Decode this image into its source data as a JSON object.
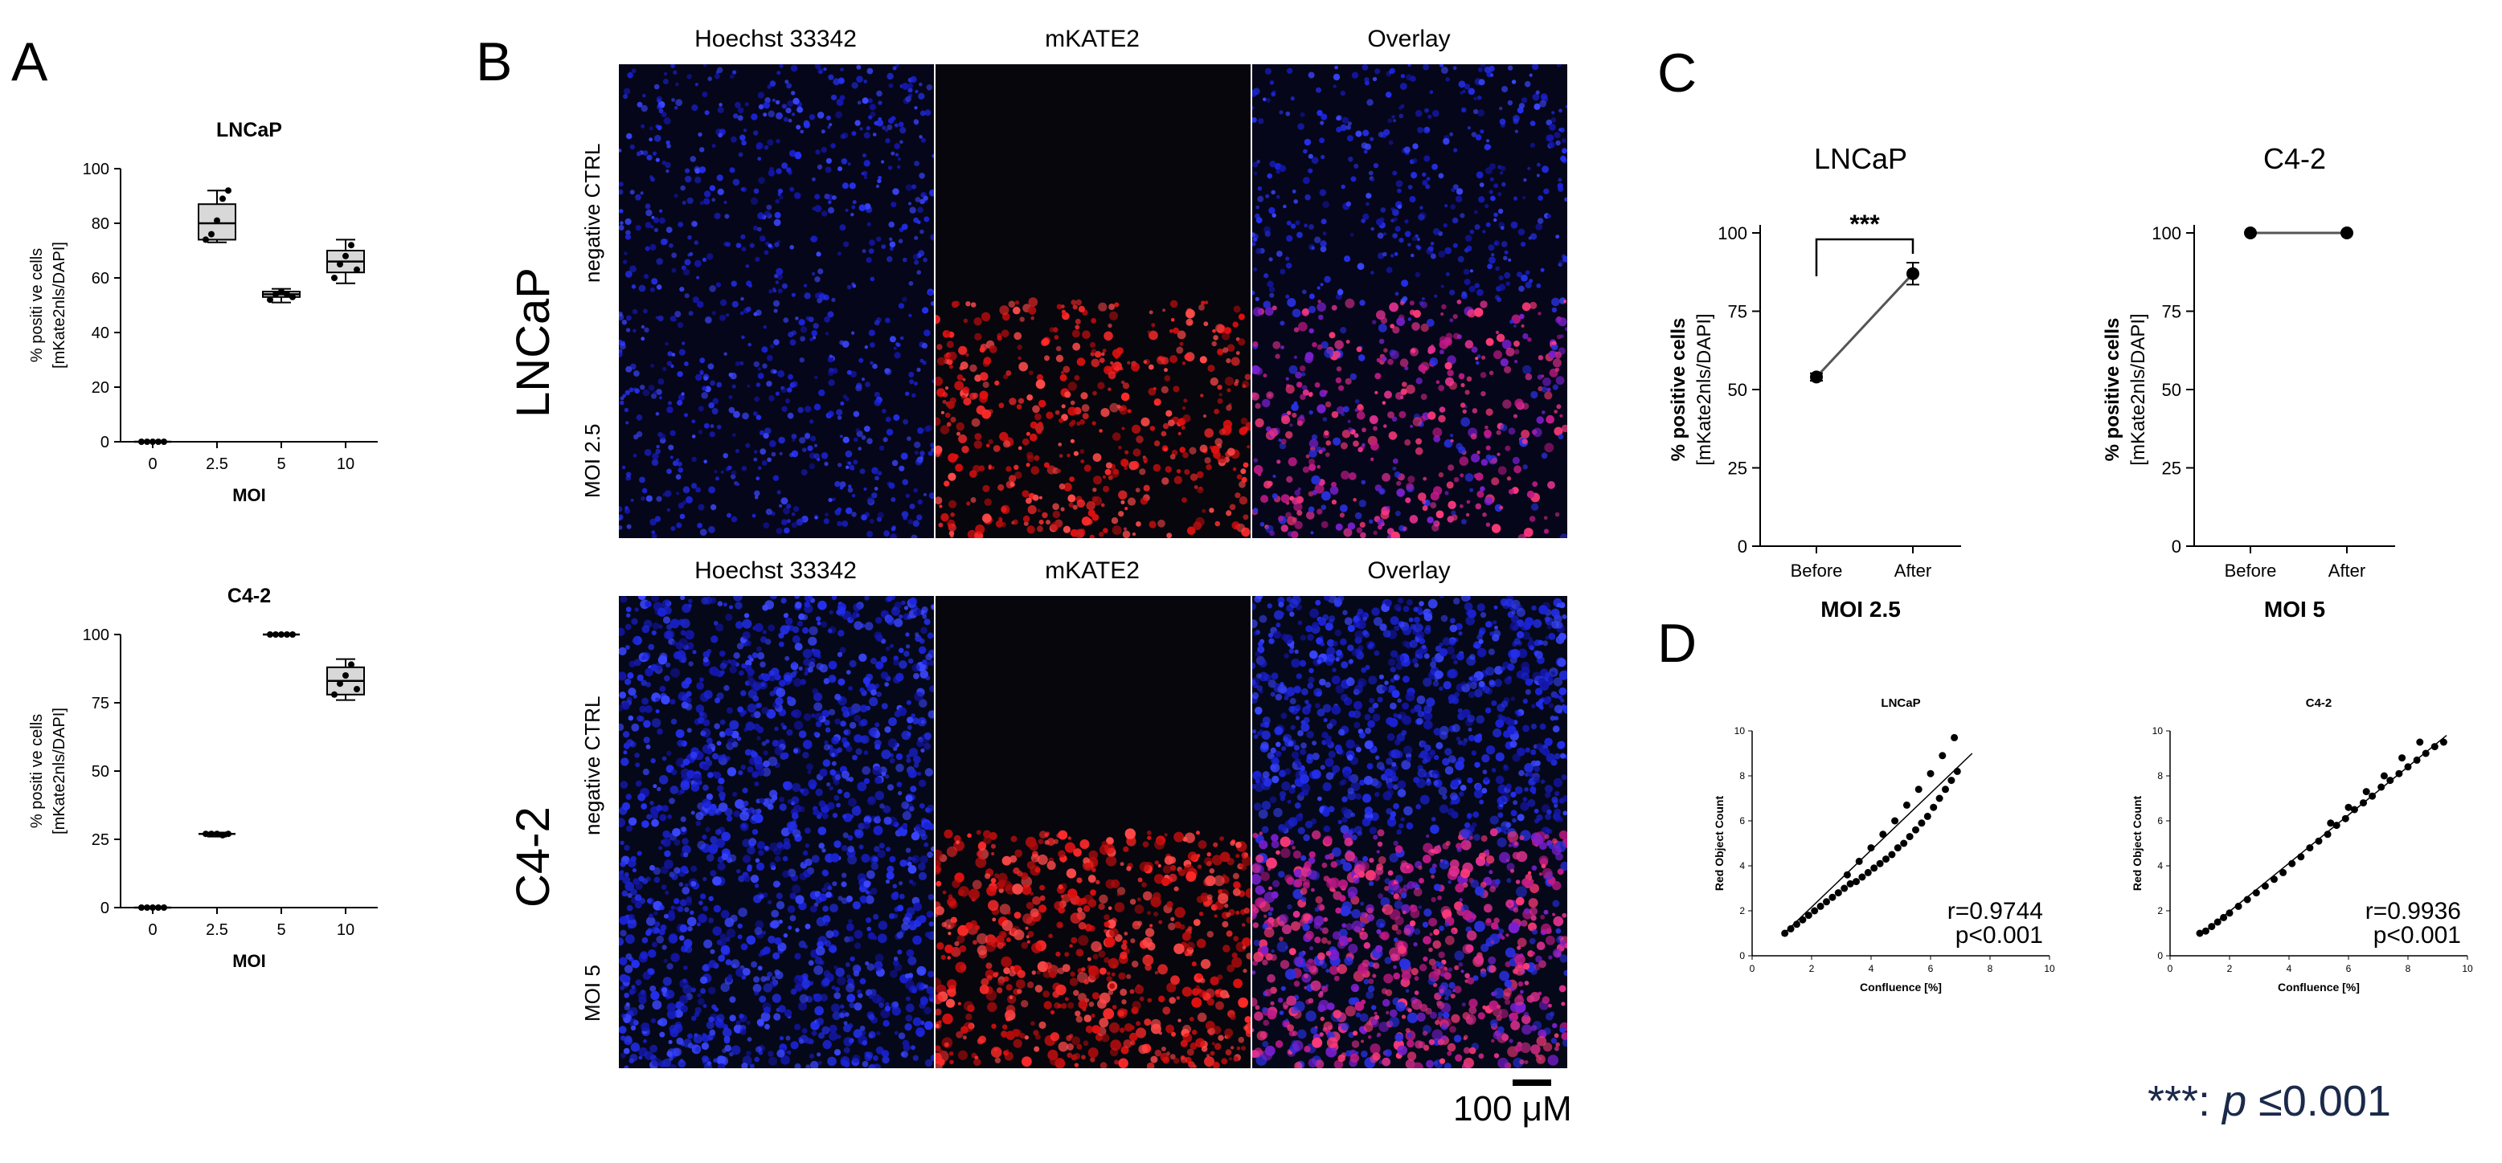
{
  "panels": {
    "a": "A",
    "b": "B",
    "c": "C",
    "d": "D"
  },
  "panel_b": {
    "col_titles": [
      "Hoechst 33342",
      "mKATE2",
      "Overlay"
    ],
    "lncap_label": "LNCaP",
    "c42_label": "C4-2",
    "rows": {
      "neg_ctrl": "negative CTRL",
      "moi25": "MOI 2.5",
      "moi5": "MOI 5"
    },
    "scale_bar": "100 μM",
    "colors": {
      "hoechst": "#1a22d6",
      "mkate": "#e01010",
      "overlay": "#c21a88",
      "dark": "#07060d"
    }
  },
  "footnote": {
    "prefix": "***: ",
    "p": "p",
    "suffix": " ≤0.001"
  },
  "chart_data": [
    {
      "id": "A-top",
      "type": "box",
      "title": "LNCaP",
      "xlabel": "MOI",
      "ylabel_line1": "% positi ve cells",
      "ylabel_line2": "[mKate2nls/DAPI]",
      "categories": [
        "0",
        "2.5",
        "5",
        "10"
      ],
      "ylim": [
        0,
        100
      ],
      "yticks": [
        "0",
        "20",
        "40",
        "60",
        "80",
        "100"
      ],
      "boxes": [
        {
          "min": 0,
          "q1": 0,
          "median": 0,
          "q3": 0,
          "max": 0,
          "points": [
            0,
            0,
            0,
            0,
            0
          ]
        },
        {
          "min": 73,
          "q1": 74,
          "median": 80,
          "q3": 87,
          "max": 92,
          "points": [
            74,
            76,
            81,
            89,
            92
          ]
        },
        {
          "min": 51,
          "q1": 53,
          "median": 54,
          "q3": 55,
          "max": 56,
          "points": [
            52,
            54,
            55,
            54,
            53
          ]
        },
        {
          "min": 58,
          "q1": 62,
          "median": 66,
          "q3": 70,
          "max": 74,
          "points": [
            60,
            65,
            68,
            72,
            63
          ]
        }
      ]
    },
    {
      "id": "A-bottom",
      "type": "box",
      "title": "C4-2",
      "xlabel": "MOI",
      "ylabel_line1": "% positi ve cells",
      "ylabel_line2": "[mKate2nls/DAPI]",
      "categories": [
        "0",
        "2.5",
        "5",
        "10"
      ],
      "ylim": [
        0,
        100
      ],
      "yticks": [
        "0",
        "25",
        "50",
        "75",
        "100"
      ],
      "boxes": [
        {
          "min": 0,
          "q1": 0,
          "median": 0,
          "q3": 0,
          "max": 0,
          "points": [
            0,
            0,
            0,
            0,
            0
          ]
        },
        {
          "min": 26,
          "q1": 26.5,
          "median": 27,
          "q3": 27,
          "max": 27.5,
          "points": [
            27,
            27,
            27,
            26.5,
            27
          ]
        },
        {
          "min": 100,
          "q1": 100,
          "median": 100,
          "q3": 100,
          "max": 100,
          "points": [
            100,
            100,
            100,
            100,
            100
          ]
        },
        {
          "min": 76,
          "q1": 78,
          "median": 83,
          "q3": 88,
          "max": 91,
          "points": [
            78,
            82,
            85,
            89,
            80
          ]
        }
      ]
    },
    {
      "id": "C-left",
      "type": "line",
      "title": "LNCaP",
      "xlabel": "MOI 2.5",
      "ylabel_line1": "% positive cells",
      "ylabel_line2": "[mKate2nls/DAPI]",
      "categories": [
        "Before",
        "After"
      ],
      "values": [
        54,
        87
      ],
      "errors": [
        1.2,
        3.5
      ],
      "ylim": [
        0,
        100
      ],
      "yticks": [
        "0",
        "25",
        "50",
        "75",
        "100"
      ],
      "significance": "***"
    },
    {
      "id": "C-right",
      "type": "line",
      "title": "C4-2",
      "xlabel": "MOI 5",
      "ylabel_line1": "% positive cells",
      "ylabel_line2": "[mKate2nls/DAPI]",
      "categories": [
        "Before",
        "After"
      ],
      "values": [
        100,
        100
      ],
      "ylim": [
        0,
        100
      ],
      "yticks": [
        "0",
        "25",
        "50",
        "75",
        "100"
      ]
    },
    {
      "id": "D-left",
      "type": "scatter",
      "title": "LNCaP",
      "xlabel": "Confluence [%]",
      "ylabel": "Red Object Count",
      "xlim": [
        0,
        10
      ],
      "ylim": [
        0,
        10
      ],
      "ticks": [
        "0",
        "2",
        "4",
        "6",
        "8",
        "10"
      ],
      "x": [
        1.1,
        1.3,
        1.5,
        1.7,
        1.9,
        2.1,
        2.3,
        2.5,
        2.7,
        2.9,
        3.1,
        3.3,
        3.5,
        3.7,
        3.9,
        4.1,
        4.3,
        4.5,
        4.7,
        4.9,
        5.1,
        5.3,
        5.5,
        5.7,
        5.9,
        6.1,
        6.3,
        6.5,
        6.7,
        6.9,
        3.2,
        3.6,
        4.0,
        4.4,
        4.8,
        5.2,
        5.6,
        6.0,
        6.4,
        6.8
      ],
      "y": [
        1.0,
        1.2,
        1.4,
        1.6,
        1.8,
        2.0,
        2.2,
        2.4,
        2.6,
        2.8,
        3.0,
        3.2,
        3.3,
        3.5,
        3.7,
        3.9,
        4.1,
        4.3,
        4.5,
        4.8,
        5.0,
        5.3,
        5.6,
        5.9,
        6.2,
        6.6,
        7.0,
        7.4,
        7.8,
        8.2,
        3.6,
        4.2,
        4.8,
        5.4,
        6.0,
        6.7,
        7.4,
        8.1,
        8.9,
        9.7
      ],
      "fit": [
        [
          1.0,
          0.9
        ],
        [
          7.4,
          9.0
        ]
      ],
      "r": "r=0.9744",
      "p": "p<0.001"
    },
    {
      "id": "D-right",
      "type": "scatter",
      "title": "C4-2",
      "xlabel": "Confluence [%]",
      "ylabel": "Red Object Count",
      "xlim": [
        0,
        10
      ],
      "ylim": [
        0,
        10
      ],
      "ticks": [
        "0",
        "2",
        "4",
        "6",
        "8",
        "10"
      ],
      "x": [
        1.0,
        1.2,
        1.4,
        1.6,
        1.8,
        2.0,
        2.3,
        2.6,
        2.9,
        3.2,
        3.5,
        3.8,
        4.1,
        4.4,
        4.7,
        5.0,
        5.3,
        5.6,
        5.9,
        6.2,
        6.5,
        6.8,
        7.1,
        7.4,
        7.7,
        8.0,
        8.3,
        8.6,
        8.9,
        9.2,
        5.4,
        6.0,
        6.6,
        7.2,
        7.8,
        8.4
      ],
      "y": [
        1.0,
        1.1,
        1.3,
        1.5,
        1.7,
        1.9,
        2.2,
        2.5,
        2.8,
        3.1,
        3.4,
        3.7,
        4.1,
        4.4,
        4.8,
        5.1,
        5.4,
        5.8,
        6.1,
        6.5,
        6.8,
        7.1,
        7.5,
        7.8,
        8.1,
        8.4,
        8.7,
        9.0,
        9.3,
        9.5,
        5.9,
        6.6,
        7.3,
        8.0,
        8.8,
        9.5
      ],
      "fit": [
        [
          1.0,
          0.9
        ],
        [
          9.3,
          9.8
        ]
      ],
      "r": "r=0.9936",
      "p": "p<0.001"
    }
  ]
}
